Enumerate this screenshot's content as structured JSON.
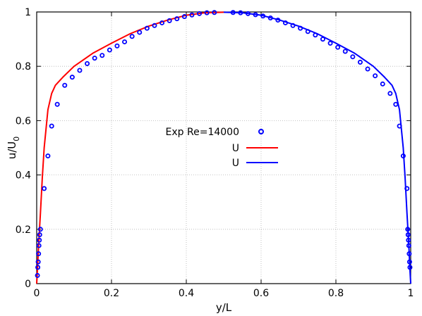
{
  "chart_data": {
    "type": "line",
    "xlabel": "y/L",
    "ylabel": "u/U",
    "ylabel_subscript": "0",
    "xlim": [
      0,
      1
    ],
    "ylim": [
      0,
      1
    ],
    "xticks": [
      0,
      0.2,
      0.4,
      0.6,
      0.8,
      1
    ],
    "yticks": [
      0,
      0.2,
      0.4,
      0.6,
      0.8,
      1
    ],
    "xtick_labels": [
      "0",
      "0.2",
      "0.4",
      "0.6",
      "0.8",
      "1"
    ],
    "ytick_labels": [
      "0",
      "0.2",
      "0.4",
      "0.6",
      "0.8",
      "1"
    ],
    "grid": true,
    "legend_position": "center",
    "series": [
      {
        "name": "Exp Re=14000",
        "style": "markers",
        "color": "#0000ff",
        "marker": "open-circle",
        "x": [
          0.002,
          0.003,
          0.004,
          0.005,
          0.006,
          0.007,
          0.008,
          0.01,
          0.02,
          0.03,
          0.04,
          0.055,
          0.075,
          0.095,
          0.115,
          0.135,
          0.155,
          0.175,
          0.195,
          0.215,
          0.235,
          0.255,
          0.275,
          0.295,
          0.315,
          0.335,
          0.355,
          0.375,
          0.395,
          0.415,
          0.435,
          0.455,
          0.475,
          0.525,
          0.545,
          0.565,
          0.585,
          0.605,
          0.625,
          0.645,
          0.665,
          0.685,
          0.705,
          0.725,
          0.745,
          0.765,
          0.785,
          0.805,
          0.825,
          0.845,
          0.865,
          0.885,
          0.905,
          0.925,
          0.945,
          0.96,
          0.97,
          0.98,
          0.99,
          0.992,
          0.993,
          0.994,
          0.995,
          0.996,
          0.997,
          0.998
        ],
        "y": [
          0.03,
          0.06,
          0.08,
          0.11,
          0.14,
          0.16,
          0.18,
          0.2,
          0.35,
          0.47,
          0.58,
          0.66,
          0.73,
          0.76,
          0.785,
          0.81,
          0.83,
          0.84,
          0.86,
          0.875,
          0.89,
          0.91,
          0.925,
          0.94,
          0.95,
          0.96,
          0.968,
          0.975,
          0.983,
          0.989,
          0.994,
          0.997,
          0.998,
          0.998,
          0.997,
          0.994,
          0.99,
          0.985,
          0.978,
          0.97,
          0.96,
          0.95,
          0.94,
          0.928,
          0.915,
          0.9,
          0.885,
          0.87,
          0.855,
          0.835,
          0.815,
          0.79,
          0.765,
          0.735,
          0.7,
          0.66,
          0.58,
          0.47,
          0.35,
          0.2,
          0.18,
          0.16,
          0.14,
          0.11,
          0.08,
          0.06
        ]
      },
      {
        "name": "U",
        "style": "line",
        "color": "#ff0000",
        "x": [
          0,
          0.002,
          0.005,
          0.01,
          0.015,
          0.02,
          0.03,
          0.04,
          0.05,
          0.07,
          0.1,
          0.15,
          0.2,
          0.25,
          0.3,
          0.35,
          0.4,
          0.45,
          0.5
        ],
        "y": [
          0,
          0.05,
          0.14,
          0.26,
          0.39,
          0.5,
          0.64,
          0.7,
          0.73,
          0.76,
          0.8,
          0.848,
          0.885,
          0.92,
          0.948,
          0.97,
          0.988,
          0.997,
          0.999
        ]
      },
      {
        "name": "U",
        "style": "line",
        "color": "#0000ff",
        "x": [
          0.5,
          0.55,
          0.6,
          0.65,
          0.7,
          0.75,
          0.8,
          0.85,
          0.9,
          0.93,
          0.95,
          0.96,
          0.97,
          0.98,
          0.985,
          0.99,
          0.995,
          0.998,
          1
        ],
        "y": [
          0.999,
          0.997,
          0.988,
          0.97,
          0.948,
          0.92,
          0.885,
          0.848,
          0.8,
          0.76,
          0.73,
          0.7,
          0.64,
          0.5,
          0.39,
          0.26,
          0.14,
          0.05,
          0
        ]
      }
    ]
  }
}
